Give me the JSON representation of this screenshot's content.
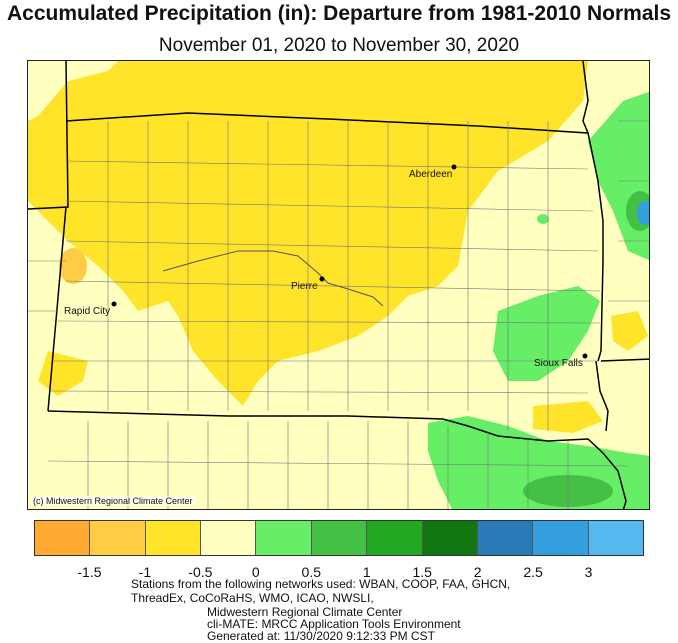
{
  "title": "Accumulated Precipitation (in): Departure from 1981-2010 Normals",
  "subtitle": "November 01, 2020 to November 30, 2020",
  "credit": "(c) Midwestern Regional Climate Center",
  "cities": [
    {
      "name": "Aberdeen"
    },
    {
      "name": "Pierre"
    },
    {
      "name": "Rapid City"
    },
    {
      "name": "Sioux Falls"
    }
  ],
  "legend": {
    "colors": [
      "#ffaa33",
      "#ffcc44",
      "#ffe42a",
      "#ffffc0",
      "#66ee66",
      "#44c044",
      "#22a822",
      "#117711",
      "#2a7ab8",
      "#33a0dd",
      "#55b8ee"
    ],
    "ticks": [
      "-1.5",
      "-1",
      "-0.5",
      "0",
      "0.5",
      "1",
      "1.5",
      "2",
      "2.5",
      "3"
    ]
  },
  "footer": {
    "line1": "Stations from the following networks used: WBAN, COOP, FAA, GHCN,",
    "line2": "ThreadEx, CoCoRaHS, WMO, ICAO, NWSLI,",
    "line3": "Midwestern Regional Climate Center",
    "line4": "cli-MATE: MRCC Application Tools Environment",
    "line5": "Generated at: 11/30/2020 9:12:33 PM CST"
  }
}
